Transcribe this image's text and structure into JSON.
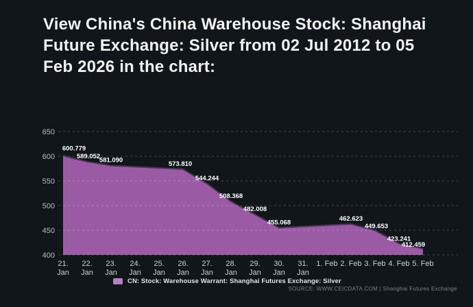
{
  "header": {
    "title": "View China's China Warehouse Stock: Shanghai Future Exchange: Silver from 02 Jul 2012 to 05 Feb 2026 in the chart:",
    "title_lines": [
      "View China's China Warehouse Stock: Shanghai",
      "Future Exchange: Silver from 02 Jul 2012 to 05",
      "Feb 2026 in the chart:"
    ]
  },
  "chart_data": {
    "type": "area",
    "title": "",
    "categories": [
      "21. Jan",
      "22. Jan",
      "23. Jan",
      "24. Jan",
      "25. Jan",
      "26. Jan",
      "27. Jan",
      "28. Jan",
      "29. Jan",
      "30. Jan",
      "31. Jan",
      "1. Feb",
      "2. Feb",
      "3. Feb",
      "4. Feb",
      "5. Feb"
    ],
    "series": [
      {
        "name": "CN: Stock: Warehouse Warrant: Shanghai Futures Exchange: Silver",
        "values": [
          600.779,
          589.052,
          581.09,
          null,
          null,
          573.81,
          544.244,
          508.368,
          482.008,
          455.068,
          null,
          null,
          462.623,
          449.653,
          423.241,
          412.459
        ]
      }
    ],
    "data_labels_shown": [
      "600.779",
      "589.052",
      "581.090",
      "573.810",
      "544.244",
      "508.368",
      "482.008",
      "455.068",
      "462.623",
      "449.653",
      "423.241",
      "412.459"
    ],
    "xlabel": "",
    "ylabel": "",
    "ylim": [
      400,
      650
    ],
    "yticks": [
      650,
      600,
      550,
      500,
      450,
      400
    ],
    "grid": "horizontal-dashed",
    "legend_position": "bottom",
    "colors": {
      "area_fill": "#9a5ba4",
      "area_stroke": "#4e3258",
      "background": "#11161a",
      "gridline": "rgba(255,255,255,0.22)",
      "axis_text": "#b7bdc2",
      "tick_text": "#ccd1d6",
      "data_label_text": "#ffffff"
    }
  },
  "legend": {
    "swatch_color": "#b87fc0",
    "label": "CN: Stock: Warehouse Warrant: Shanghai Futures Exchange: Silver"
  },
  "footer": {
    "source": "SOURCE: WWW.CEICDATA.COM | Shanghai Futures Exchange"
  }
}
